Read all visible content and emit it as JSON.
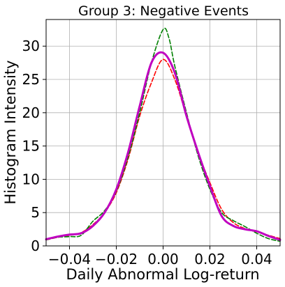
{
  "chart_data": {
    "type": "line",
    "title": "Group 3: Negative Events",
    "xlabel": "Daily Abnormal Log-return",
    "ylabel": "Histogram Intensity",
    "xlim": [
      -0.05,
      0.05
    ],
    "ylim": [
      0,
      34
    ],
    "grid": true,
    "x_ticks": [
      -0.04,
      -0.02,
      0.0,
      0.02,
      0.04
    ],
    "x_tick_labels": [
      "−0.04",
      "−0.02",
      "0.00",
      "0.02",
      "0.04"
    ],
    "y_ticks": [
      0,
      5,
      10,
      15,
      20,
      25,
      30
    ],
    "y_tick_labels": [
      "0",
      "5",
      "10",
      "15",
      "20",
      "25",
      "30"
    ],
    "series": [
      {
        "color": "#ff0000",
        "style": "dashed",
        "points": [
          [
            -0.05,
            0.9
          ],
          [
            -0.045,
            1.3
          ],
          [
            -0.04,
            1.6
          ],
          [
            -0.035,
            2.0
          ],
          [
            -0.03,
            3.2
          ],
          [
            -0.025,
            5.0
          ],
          [
            -0.02,
            8.0
          ],
          [
            -0.015,
            13.0
          ],
          [
            -0.01,
            19.5
          ],
          [
            -0.005,
            24.5
          ],
          [
            0.0,
            28.0
          ],
          [
            0.005,
            25.0
          ],
          [
            0.01,
            19.5
          ],
          [
            0.015,
            14.0
          ],
          [
            0.02,
            9.5
          ],
          [
            0.025,
            5.5
          ],
          [
            0.03,
            3.5
          ],
          [
            0.035,
            2.6
          ],
          [
            0.04,
            2.1
          ],
          [
            0.045,
            1.6
          ],
          [
            0.05,
            1.1
          ]
        ]
      },
      {
        "color": "#008000",
        "style": "dashed",
        "points": [
          [
            -0.05,
            0.9
          ],
          [
            -0.045,
            1.3
          ],
          [
            -0.04,
            1.4
          ],
          [
            -0.035,
            1.6
          ],
          [
            -0.03,
            3.7
          ],
          [
            -0.025,
            5.3
          ],
          [
            -0.02,
            8.2
          ],
          [
            -0.015,
            13.3
          ],
          [
            -0.01,
            20.0
          ],
          [
            -0.005,
            27.5
          ],
          [
            0.0,
            32.5
          ],
          [
            0.0025,
            31.2
          ],
          [
            0.005,
            27.0
          ],
          [
            0.01,
            20.0
          ],
          [
            0.015,
            13.5
          ],
          [
            0.02,
            8.5
          ],
          [
            0.025,
            5.0
          ],
          [
            0.03,
            3.8
          ],
          [
            0.035,
            2.9
          ],
          [
            0.04,
            1.9
          ],
          [
            0.045,
            1.1
          ],
          [
            0.05,
            0.7
          ]
        ]
      },
      {
        "color": "#c000c0",
        "style": "solid",
        "points": [
          [
            -0.05,
            1.0
          ],
          [
            -0.045,
            1.4
          ],
          [
            -0.04,
            1.7
          ],
          [
            -0.035,
            1.9
          ],
          [
            -0.03,
            3.0
          ],
          [
            -0.025,
            5.0
          ],
          [
            -0.02,
            8.5
          ],
          [
            -0.015,
            14.0
          ],
          [
            -0.01,
            21.0
          ],
          [
            -0.005,
            27.5
          ],
          [
            0.0,
            29.0
          ],
          [
            0.005,
            26.0
          ],
          [
            0.01,
            19.5
          ],
          [
            0.015,
            14.0
          ],
          [
            0.02,
            9.0
          ],
          [
            0.025,
            4.5
          ],
          [
            0.03,
            3.0
          ],
          [
            0.035,
            2.5
          ],
          [
            0.04,
            2.2
          ],
          [
            0.045,
            1.5
          ],
          [
            0.05,
            0.9
          ]
        ]
      }
    ]
  }
}
